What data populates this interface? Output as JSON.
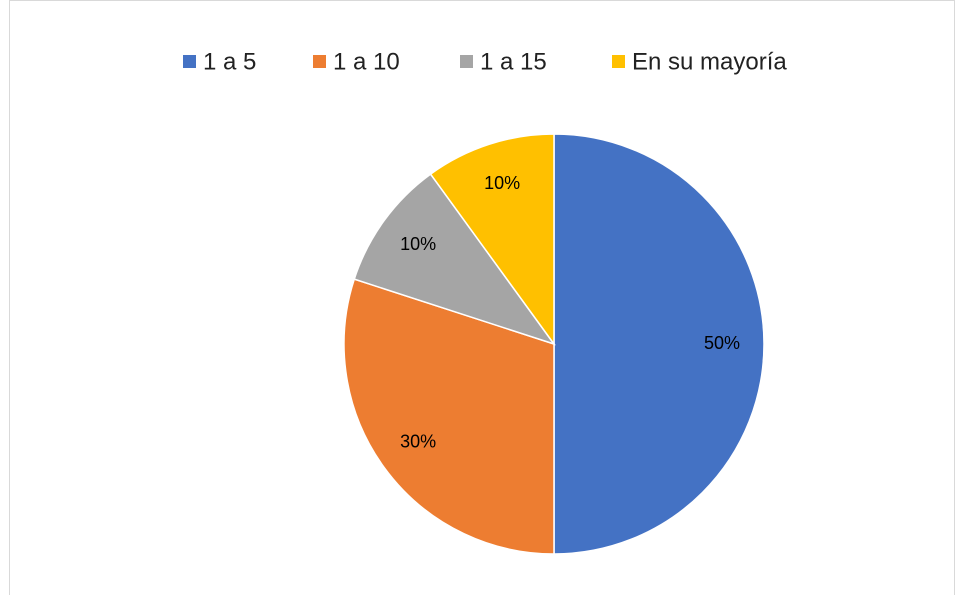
{
  "chart_data": {
    "type": "pie",
    "categories": [
      "1 a 5",
      "1 a 10",
      "1 a 15",
      "En su mayoría"
    ],
    "values": [
      50,
      30,
      10,
      10
    ],
    "value_labels": [
      "50%",
      "30%",
      "10%",
      "10%"
    ],
    "colors": [
      "#4472c4",
      "#ed7d31",
      "#a5a5a5",
      "#ffc000"
    ],
    "legend": "top"
  }
}
